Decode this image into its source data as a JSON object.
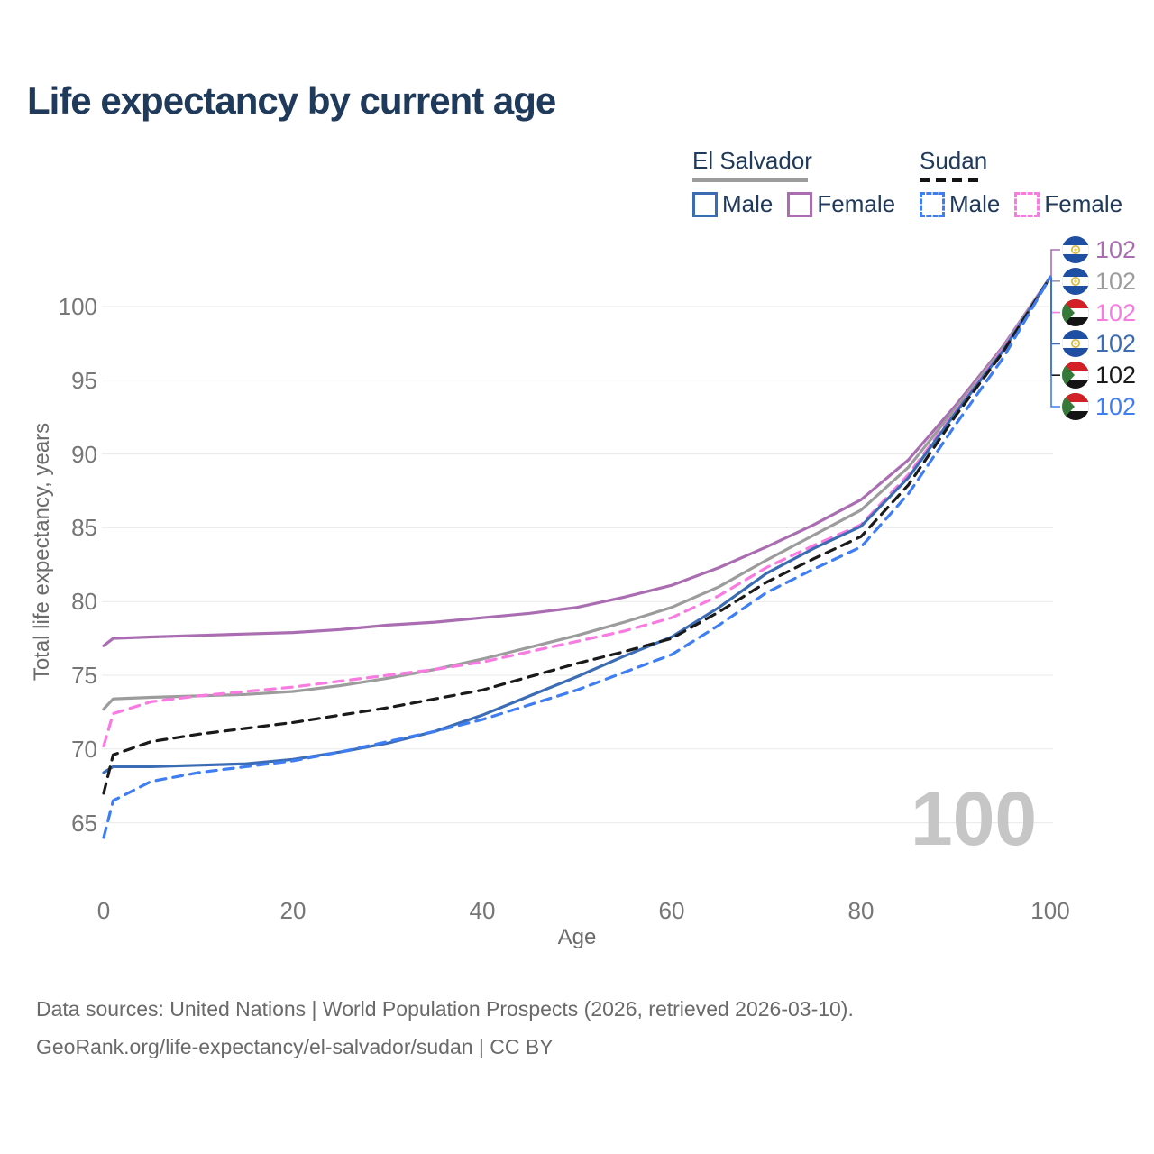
{
  "title": "Life expectancy by current age",
  "watermark": "100",
  "legend": {
    "groups": [
      {
        "label": "El Salvador",
        "line_style": "solid",
        "underline_color": "#9c9c9c",
        "items": [
          {
            "label": "Male",
            "color": "#3c6cb4",
            "dashed": false
          },
          {
            "label": "Female",
            "color": "#aa6db2",
            "dashed": false
          }
        ]
      },
      {
        "label": "Sudan",
        "line_style": "dashed",
        "underline_color": "#141414",
        "items": [
          {
            "label": "Male",
            "color": "#3f7df2",
            "dashed": true
          },
          {
            "label": "Female",
            "color": "#f97be1",
            "dashed": true
          }
        ]
      }
    ]
  },
  "footer": {
    "line1": "Data sources: United Nations | World Population Prospects (2026, retrieved 2026-03-10).",
    "line2": "GeoRank.org/life-expectancy/el-salvador/sudan | CC BY"
  },
  "chart_data": {
    "type": "line",
    "title": "Life expectancy by current age",
    "xlabel": "Age",
    "ylabel": "Total life expectancy, years",
    "xlim": [
      0,
      100
    ],
    "ylim": [
      63,
      103
    ],
    "xticks": [
      0,
      20,
      40,
      60,
      80,
      100
    ],
    "yticks": [
      65,
      70,
      75,
      80,
      85,
      90,
      95,
      100
    ],
    "grid": "horizontal",
    "legend_position": "top-right",
    "x": [
      0,
      1,
      5,
      10,
      15,
      20,
      25,
      30,
      35,
      40,
      45,
      50,
      55,
      60,
      65,
      70,
      75,
      80,
      85,
      90,
      95,
      100
    ],
    "series": [
      {
        "name": "El Salvador Female",
        "country": "El Salvador",
        "sex": "female",
        "color": "#aa6db2",
        "dashed": false,
        "flag": "sv",
        "end_label": "102",
        "values": [
          77.0,
          77.5,
          77.6,
          77.7,
          77.8,
          77.9,
          78.1,
          78.4,
          78.6,
          78.9,
          79.2,
          79.6,
          80.3,
          81.1,
          82.3,
          83.7,
          85.2,
          86.9,
          89.6,
          93.3,
          97.3,
          102
        ]
      },
      {
        "name": "El Salvador (all)",
        "country": "El Salvador",
        "sex": "all",
        "color": "#9c9c9c",
        "dashed": false,
        "flag": "sv",
        "end_label": "102",
        "values": [
          72.7,
          73.4,
          73.5,
          73.6,
          73.7,
          73.9,
          74.3,
          74.8,
          75.4,
          76.1,
          76.9,
          77.7,
          78.6,
          79.6,
          81.0,
          82.8,
          84.5,
          86.2,
          89.1,
          93.1,
          97.2,
          102
        ]
      },
      {
        "name": "Sudan Female",
        "country": "Sudan",
        "sex": "female",
        "color": "#f97be1",
        "dashed": true,
        "flag": "sd",
        "end_label": "102",
        "values": [
          70.2,
          72.4,
          73.2,
          73.6,
          73.9,
          74.2,
          74.6,
          75.0,
          75.4,
          75.9,
          76.6,
          77.3,
          78.0,
          78.9,
          80.4,
          82.3,
          83.8,
          85.2,
          88.6,
          92.9,
          97.1,
          102
        ]
      },
      {
        "name": "El Salvador Male",
        "country": "El Salvador",
        "sex": "male",
        "color": "#3c6cb4",
        "dashed": false,
        "flag": "sv",
        "end_label": "102",
        "values": [
          68.4,
          68.8,
          68.8,
          68.9,
          69.0,
          69.3,
          69.8,
          70.4,
          71.2,
          72.3,
          73.6,
          74.9,
          76.3,
          77.6,
          79.6,
          81.9,
          83.6,
          85.1,
          88.4,
          92.8,
          97.0,
          102
        ]
      },
      {
        "name": "Sudan (all)",
        "country": "Sudan",
        "sex": "all",
        "color": "#1a1a1a",
        "dashed": true,
        "flag": "sd",
        "end_label": "102",
        "values": [
          67.0,
          69.6,
          70.5,
          71.0,
          71.4,
          71.8,
          72.3,
          72.8,
          73.4,
          74.0,
          74.9,
          75.8,
          76.6,
          77.5,
          79.3,
          81.3,
          82.9,
          84.4,
          87.9,
          92.6,
          96.9,
          102
        ]
      },
      {
        "name": "Sudan Male",
        "country": "Sudan",
        "sex": "male",
        "color": "#3f7df2",
        "dashed": true,
        "flag": "sd",
        "end_label": "102",
        "values": [
          64.0,
          66.5,
          67.8,
          68.4,
          68.8,
          69.2,
          69.8,
          70.5,
          71.2,
          72.0,
          73.0,
          74.0,
          75.2,
          76.4,
          78.4,
          80.6,
          82.2,
          83.7,
          87.3,
          92.0,
          96.5,
          102
        ]
      }
    ]
  }
}
